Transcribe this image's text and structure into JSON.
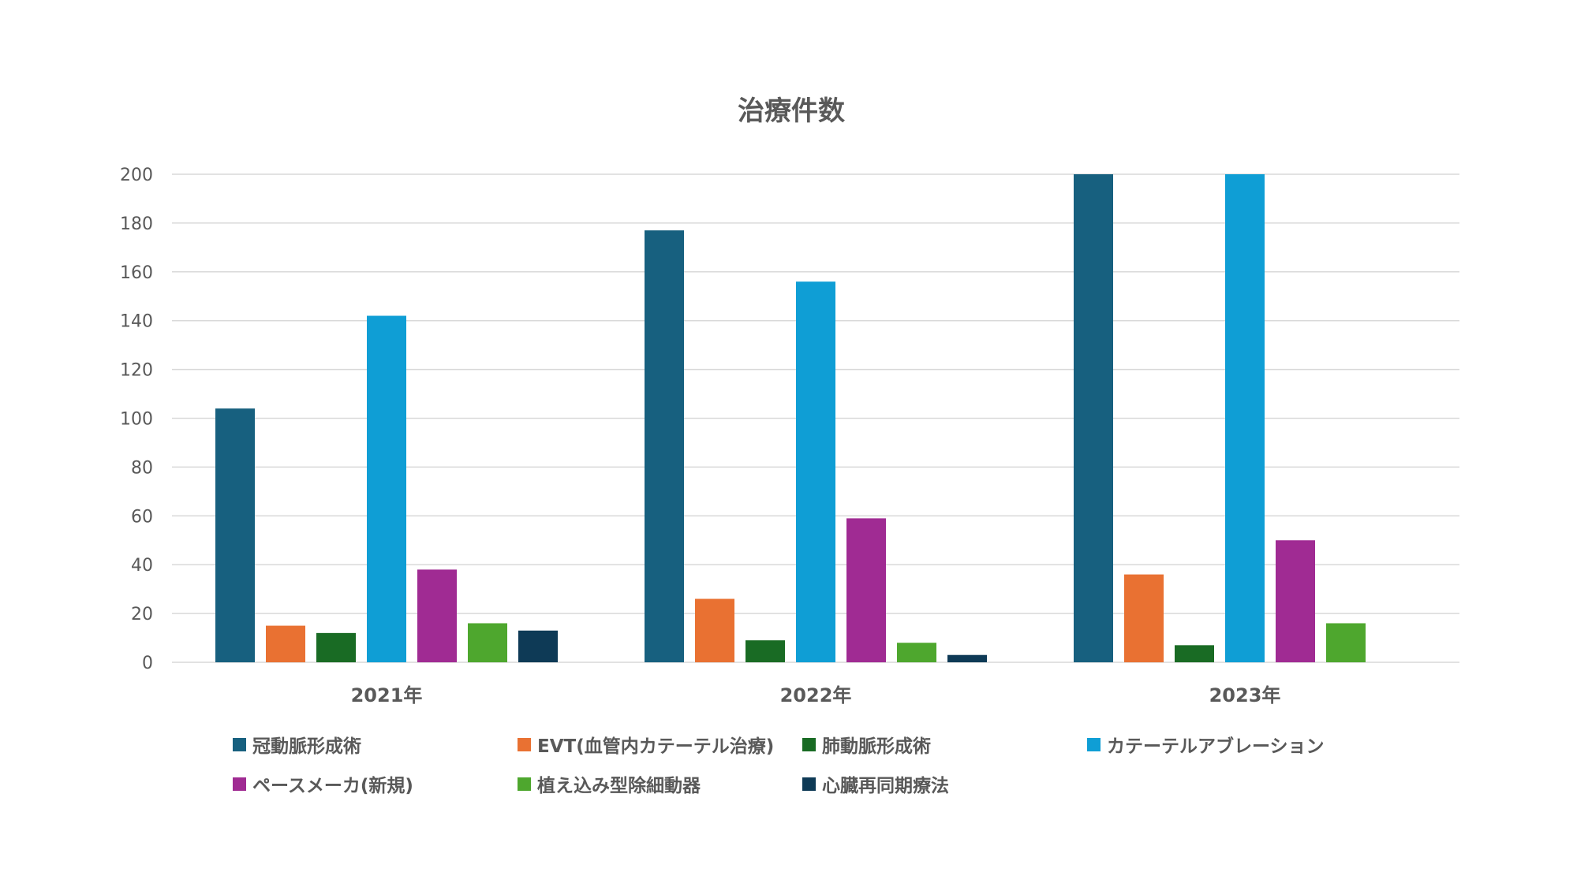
{
  "chart_data": {
    "type": "bar",
    "title": "治療件数",
    "categories": [
      "2021年",
      "2022年",
      "2023年"
    ],
    "ylim": [
      0,
      200
    ],
    "yticks": [
      0,
      20,
      40,
      60,
      80,
      100,
      120,
      140,
      160,
      180,
      200
    ],
    "grid": true,
    "legend_position": "bottom",
    "series": [
      {
        "name": "冠動脈形成術",
        "color": "#17607f",
        "values": [
          104,
          177,
          200
        ]
      },
      {
        "name": "EVT(血管内カテーテル治療)",
        "color": "#e97132",
        "values": [
          15,
          26,
          36
        ]
      },
      {
        "name": "肺動脈形成術",
        "color": "#196b24",
        "values": [
          12,
          9,
          7
        ]
      },
      {
        "name": "カテーテルアブレーション",
        "color": "#0f9ed5",
        "values": [
          142,
          156,
          200
        ]
      },
      {
        "name": "ペースメーカ(新規)",
        "color": "#a02b93",
        "values": [
          38,
          59,
          50
        ]
      },
      {
        "name": "植え込み型除細動器",
        "color": "#4ea72e",
        "values": [
          16,
          8,
          16
        ]
      },
      {
        "name": "心臓再同期療法",
        "color": "#0e3a56",
        "values": [
          13,
          3,
          0
        ]
      }
    ]
  }
}
